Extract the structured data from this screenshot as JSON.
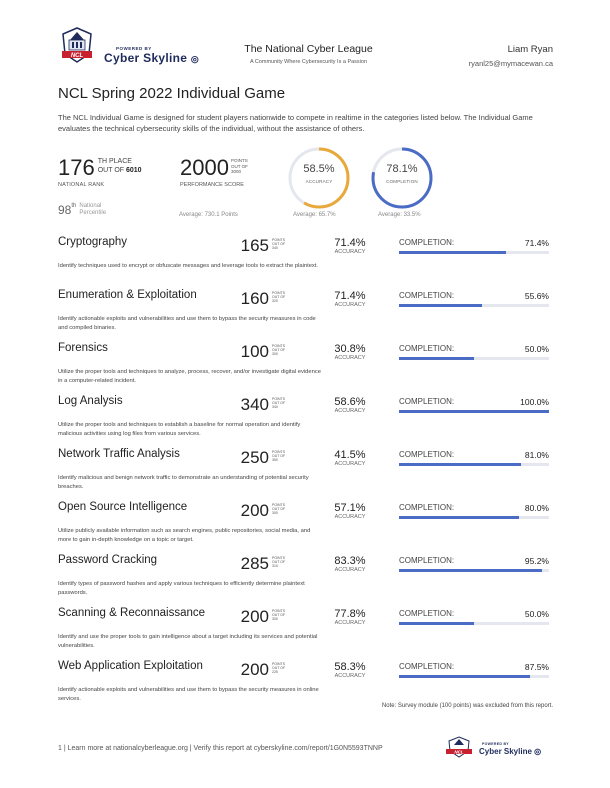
{
  "header": {
    "powered_by": "POWERED BY",
    "brand": "Cyber Skyline",
    "org_title": "The National Cyber League",
    "org_subtitle": "A Community Where Cybersecurity Is a Passion",
    "user_name": "Liam Ryan",
    "user_email": "ryanl25@mymacewan.ca"
  },
  "title": "NCL Spring 2022 Individual Game",
  "intro": "The NCL Individual Game is designed for student players nationwide to compete in realtime in the categories listed below. The Individual Game evaluates the technical cybersecurity skills of the individual, without the assistance of others.",
  "summary": {
    "rank": "176",
    "rank_th": "TH PLACE",
    "rank_outof": "OUT OF",
    "rank_total": "6010",
    "rank_label": "NATIONAL RANK",
    "score": "2000",
    "score_points": "POINTS",
    "score_outof": "OUT OF",
    "score_total": "3000",
    "score_label": "PERFORMANCE SCORE",
    "score_avg": "Average: 730.1 Points",
    "percentile": "98",
    "percentile_sup": "th",
    "percentile_label1": "National",
    "percentile_label2": "Percentile",
    "accuracy": "58.5%",
    "accuracy_fraction": 0.585,
    "accuracy_label": "ACCURACY",
    "accuracy_avg": "Average: 65.7%",
    "completion": "78.1%",
    "completion_fraction": 0.781,
    "completion_label": "COMPLETION",
    "completion_avg": "Average: 33.5%",
    "colors": {
      "accuracy_ring": "#e8a83a",
      "completion_ring": "#4a6cc4",
      "ring_track": "#e4e7ee"
    }
  },
  "labels": {
    "points": "POINTS",
    "out_of": "OUT OF",
    "accuracy": "ACCURACY",
    "completion": "COMPLETION:"
  },
  "categories": [
    {
      "name": "Cryptography",
      "points": "165",
      "total": "340",
      "accuracy": "71.4%",
      "completion": "71.4%",
      "fraction": 0.714,
      "desc": "Identify techniques used to encrypt or obfuscate messages and leverage tools to extract the plaintext."
    },
    {
      "name": "Enumeration & Exploitation",
      "points": "160",
      "total": "320",
      "accuracy": "71.4%",
      "completion": "55.6%",
      "fraction": 0.556,
      "desc": "Identify actionable exploits and vulnerabilities and use them to bypass the security measures in code and compiled binaries."
    },
    {
      "name": "Forensics",
      "points": "100",
      "total": "300",
      "accuracy": "30.8%",
      "completion": "50.0%",
      "fraction": 0.5,
      "desc": "Utilize the proper tools and techniques to analyze, process, recover, and/or investigate digital evidence in a computer-related incident."
    },
    {
      "name": "Log Analysis",
      "points": "340",
      "total": "340",
      "accuracy": "58.6%",
      "completion": "100.0%",
      "fraction": 1.0,
      "desc": "Utilize the proper tools and techniques to establish a baseline for normal operation and identify malicious activities using log files from various services."
    },
    {
      "name": "Network Traffic Analysis",
      "points": "250",
      "total": "350",
      "accuracy": "41.5%",
      "completion": "81.0%",
      "fraction": 0.81,
      "desc": "Identify malicious and benign network traffic to demonstrate an understanding of potential security breaches."
    },
    {
      "name": "Open Source Intelligence",
      "points": "200",
      "total": "300",
      "accuracy": "57.1%",
      "completion": "80.0%",
      "fraction": 0.8,
      "desc": "Utilize publicly available information such as search engines, public repositories, social media, and more to gain in-depth knowledge on a topic or target."
    },
    {
      "name": "Password Cracking",
      "points": "285",
      "total": "310",
      "accuracy": "83.3%",
      "completion": "95.2%",
      "fraction": 0.952,
      "desc": "Identify types of password hashes and apply various techniques to efficiently determine plaintext passwords."
    },
    {
      "name": "Scanning & Reconnaissance",
      "points": "200",
      "total": "300",
      "accuracy": "77.8%",
      "completion": "50.0%",
      "fraction": 0.5,
      "desc": "Identify and use the proper tools to gain intelligence about a target including its services and potential vulnerabilities."
    },
    {
      "name": "Web Application Exploitation",
      "points": "200",
      "total": "225",
      "accuracy": "58.3%",
      "completion": "87.5%",
      "fraction": 0.875,
      "desc": "Identify actionable exploits and vulnerabilities and use them to bypass the security measures in online services."
    }
  ],
  "note": "Note: Survey module (100 points) was excluded from this report.",
  "footer": {
    "text": "1  |  Learn more at nationalcyberleague.org  |  Verify this report at cyberskyline.com/report/1G0N5593TNNP",
    "powered_by": "POWERED BY",
    "brand": "Cyber Skyline"
  }
}
